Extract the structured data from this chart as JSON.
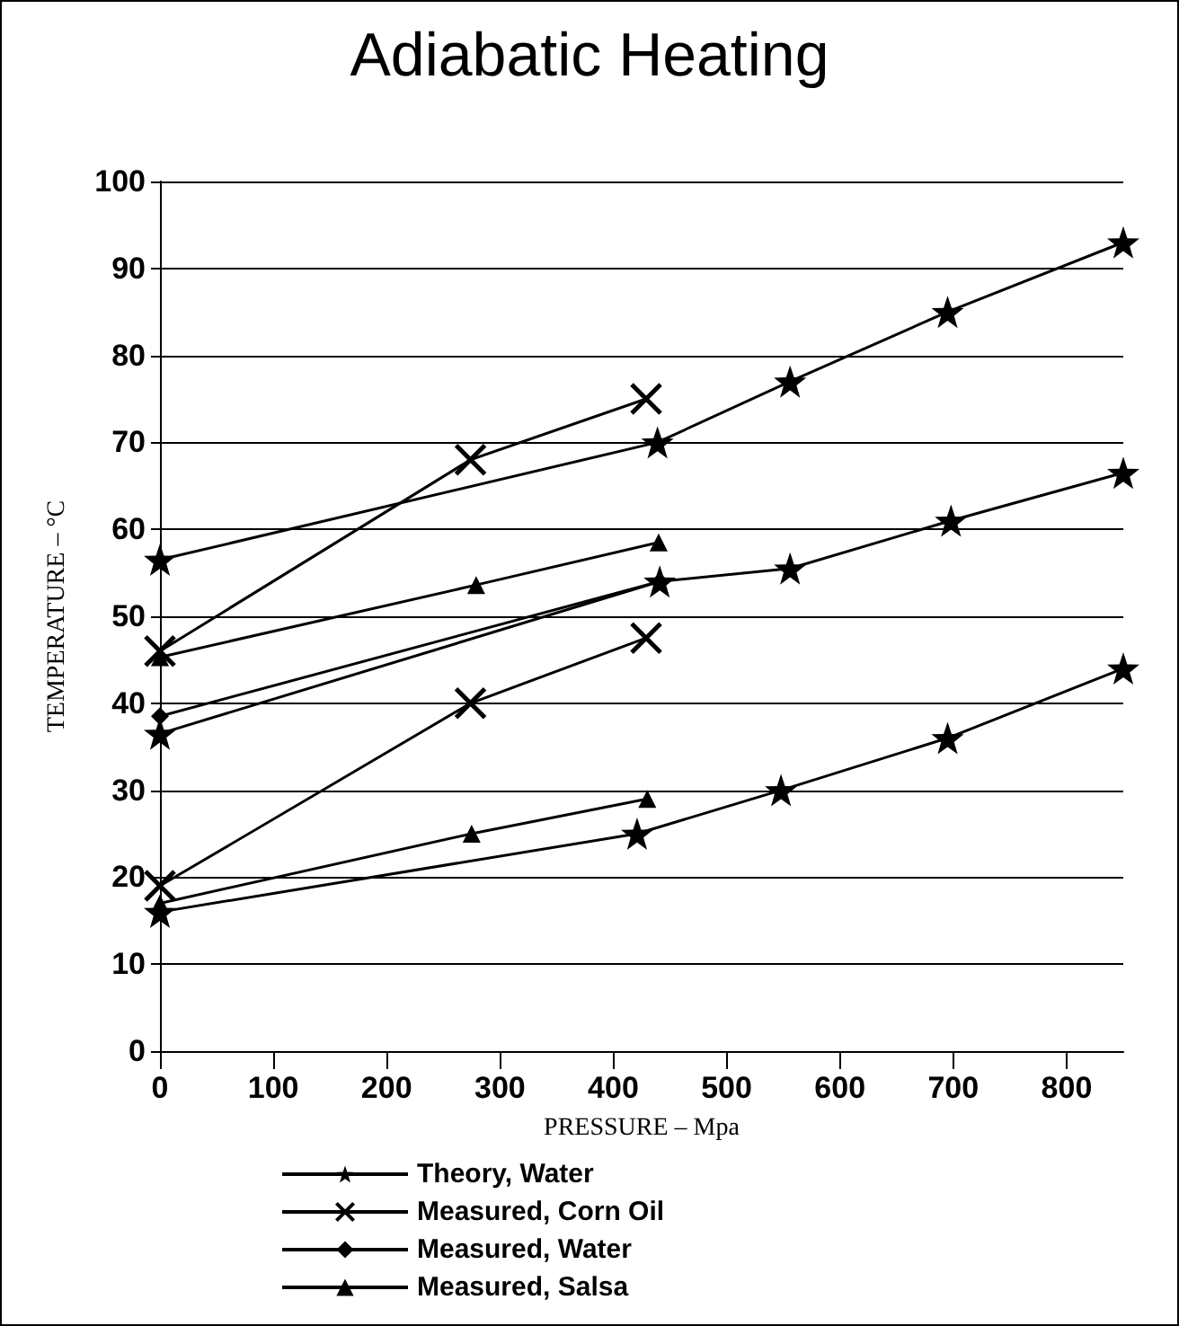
{
  "chart_data": {
    "type": "line",
    "title": "Adiabatic Heating",
    "xlabel": "PRESSURE – Mpa",
    "ylabel": "TEMPERATURE – °C",
    "xlim": [
      0,
      850
    ],
    "xticks": [
      0,
      100,
      200,
      300,
      400,
      500,
      600,
      700,
      800
    ],
    "ylim": [
      0,
      100
    ],
    "yticks": [
      0,
      10,
      20,
      30,
      40,
      50,
      60,
      70,
      80,
      90,
      100
    ],
    "grid": "y",
    "legend": "bottom",
    "line_style": "solid",
    "series": [
      {
        "name": "Theory, Water",
        "color": "#000000",
        "marker": "star",
        "x": [
          0,
          421,
          548,
          695,
          850
        ],
        "values": [
          16,
          25,
          30,
          36,
          44
        ]
      },
      {
        "color": "#000000",
        "marker": "star",
        "x": [
          0,
          441,
          556,
          698,
          850
        ],
        "values": [
          36.5,
          54,
          55.5,
          61,
          66.5
        ]
      },
      {
        "color": "#000000",
        "marker": "star",
        "x": [
          0,
          439,
          556,
          695,
          850
        ],
        "values": [
          56.5,
          70,
          77,
          85,
          93
        ]
      },
      {
        "name": "Measured, Corn Oil",
        "color": "#000000",
        "marker": "cross",
        "x": [
          0,
          274,
          429
        ],
        "values": [
          46,
          68,
          75
        ]
      },
      {
        "color": "#000000",
        "marker": "cross",
        "x": [
          0,
          274,
          429
        ],
        "values": [
          19,
          40,
          47.5
        ]
      },
      {
        "name": "Measured, Water",
        "color": "#000000",
        "marker": "diamond",
        "x": [
          0,
          441
        ],
        "values": [
          38.5,
          54
        ]
      },
      {
        "name": "Measured, Salsa",
        "color": "#000000",
        "marker": "triangle",
        "x": [
          0,
          279,
          440
        ],
        "values": [
          45.3,
          53.6,
          58.5
        ]
      },
      {
        "color": "#000000",
        "marker": "triangle",
        "x": [
          0,
          275,
          430
        ],
        "values": [
          17,
          25,
          29
        ]
      }
    ]
  }
}
